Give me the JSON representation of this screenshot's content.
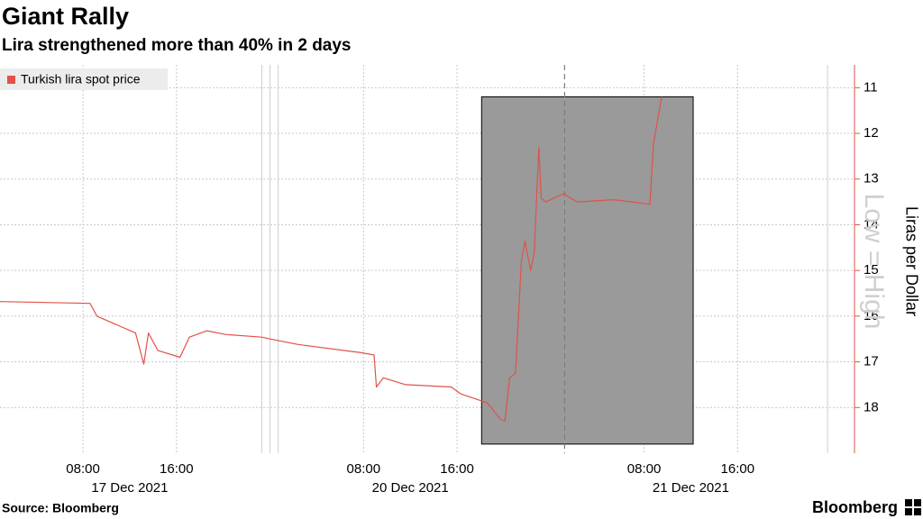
{
  "chart_data": {
    "type": "line",
    "title": "Giant Rally",
    "subtitle": "Lira strengthened more than 40% in 2 days",
    "y_label": "Liras per Dollar",
    "annotation": "Low = High",
    "source": "Source: Bloomberg",
    "brand": "Bloomberg",
    "inverted_y": true,
    "grid": true,
    "legend": "top-left",
    "series": [
      {
        "name": "Turkish lira spot price",
        "color": "#e0524a",
        "x": [
          0.9,
          8.6,
          9.2,
          12.5,
          13.2,
          13.6,
          14.4,
          16.3,
          17.1,
          18.6,
          20.2,
          23.3,
          24.0,
          26.4,
          31.8,
          32.9,
          33.1,
          33.7,
          35.6,
          39.5,
          40.3,
          42.6,
          43.7,
          44.1,
          44.5,
          45.0,
          45.5,
          45.8,
          46.3,
          46.6,
          47.0,
          47.2,
          47.6,
          49.1,
          50.3,
          53.4,
          56.5,
          56.8,
          57.5
        ],
        "values": [
          15.68,
          15.72,
          16.0,
          16.37,
          17.05,
          16.37,
          16.75,
          16.9,
          16.46,
          16.32,
          16.4,
          16.46,
          16.5,
          16.62,
          16.8,
          16.85,
          17.55,
          17.35,
          17.5,
          17.55,
          17.7,
          17.9,
          18.25,
          18.3,
          17.35,
          17.25,
          14.8,
          14.36,
          15.0,
          14.6,
          12.3,
          13.42,
          13.5,
          13.32,
          13.5,
          13.45,
          13.55,
          12.24,
          11.2
        ]
      }
    ],
    "highlight": {
      "xlim": [
        42.1,
        60.2
      ],
      "ylim": [
        11.2,
        18.8
      ],
      "color": "#9a9a9a"
    },
    "vlines": [
      23.3,
      24.0,
      24.7,
      71.7
    ],
    "dashed_vlines": [
      49.2
    ],
    "xlim": [
      0.9,
      74.0
    ],
    "ylim": [
      10.5,
      19.0
    ],
    "yticks": [
      11,
      12,
      13,
      14,
      15,
      16,
      17,
      18
    ],
    "xticks": [
      {
        "value": 8,
        "label": "08:00"
      },
      {
        "value": 16,
        "label": "16:00"
      },
      {
        "value": 32,
        "label": "08:00"
      },
      {
        "value": 40,
        "label": "16:00"
      },
      {
        "value": 56,
        "label": "08:00"
      },
      {
        "value": 64,
        "label": "16:00"
      }
    ],
    "date_labels": [
      {
        "value": 12,
        "label": "17 Dec 2021"
      },
      {
        "value": 36,
        "label": "20 Dec 2021"
      },
      {
        "value": 60,
        "label": "21 Dec 2021"
      }
    ]
  }
}
